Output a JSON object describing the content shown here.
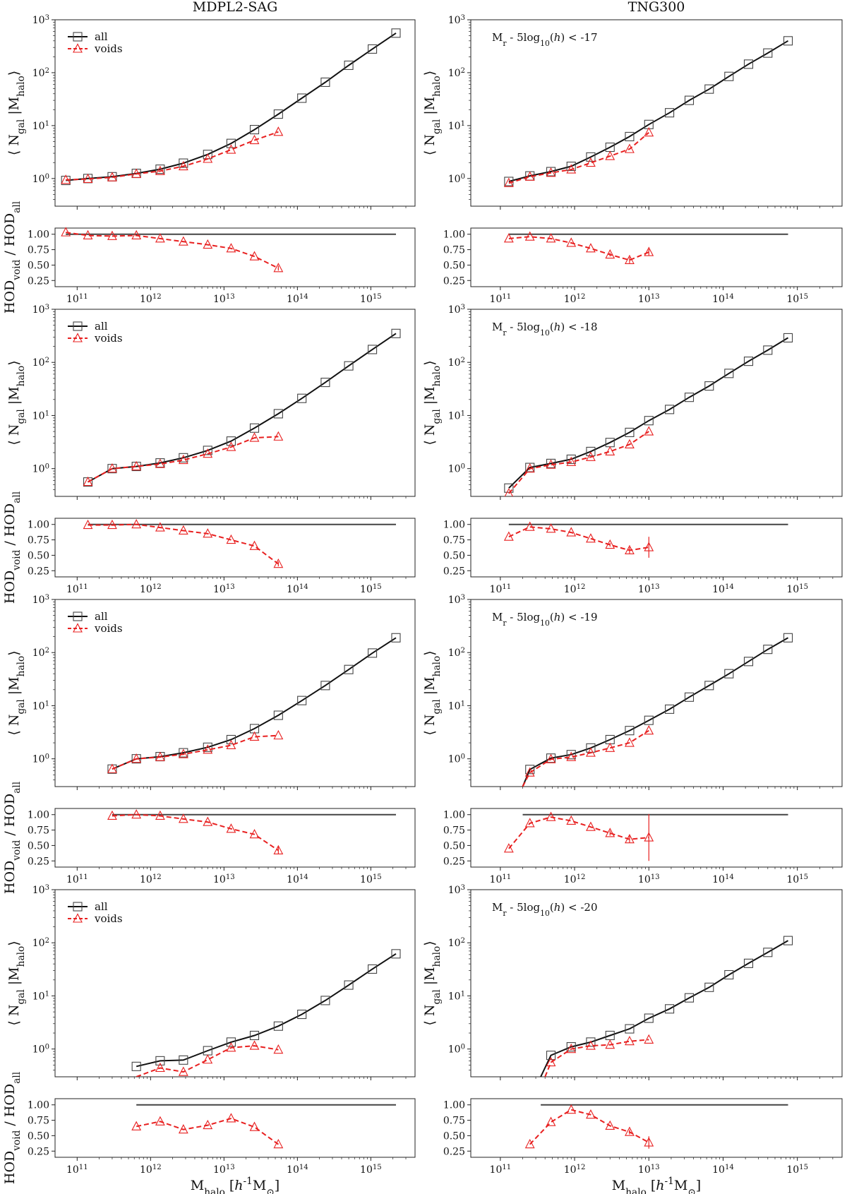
{
  "columns": [
    "MDPL2-SAG",
    "TNG300"
  ],
  "axis": {
    "xlabel": "M<sub>halo</sub> [<i>h</i><sup>-1</sup>M<sub>⊙</sub>]",
    "ylabel_top": "⟨ N<sub>gal</sub> |M<sub>halo</sub>⟩",
    "ylabel_ratio": "HOD<sub>void</sub> / HOD<sub>all</sub>",
    "x_ticks": [
      {
        "exp": 11,
        "label": "10<sup>11</sup>"
      },
      {
        "exp": 12,
        "label": "10<sup>12</sup>"
      },
      {
        "exp": 13,
        "label": "10<sup>13</sup>"
      },
      {
        "exp": 14,
        "label": "10<sup>14</sup>"
      },
      {
        "exp": 15,
        "label": "10<sup>15</sup>"
      }
    ],
    "y_ticks": [
      {
        "exp": 0,
        "label": "10<sup>0</sup>"
      },
      {
        "exp": 1,
        "label": "10<sup>1</sup>"
      },
      {
        "exp": 2,
        "label": "10<sup>2</sup>"
      },
      {
        "exp": 3,
        "label": "10<sup>3</sup>"
      }
    ],
    "ratio_ticks": [
      "1.00",
      "0.75",
      "0.50",
      "0.25"
    ]
  },
  "legend": {
    "all": "all",
    "voids": "voids"
  },
  "colors": {
    "all": "#111111",
    "voids": "#e82020"
  },
  "chart_data": [
    {
      "type": "line",
      "column": "MDPL2-SAG",
      "row": 1,
      "annotation": "",
      "xscale": "log",
      "yscale": "log",
      "xlim": [
        50000000000.0,
        4000000000000000.0
      ],
      "ylim": [
        0.3,
        1000
      ],
      "ratio_ylim": [
        0.15,
        1.1
      ],
      "series": [
        {
          "name": "all",
          "x": [
            70000000000.0,
            140000000000.0,
            300000000000.0,
            640000000000.0,
            1350000000000.0,
            2800000000000.0,
            6000000000000.0,
            12500000000000.0,
            26000000000000.0,
            55000000000000.0,
            115000000000000.0,
            240000000000000.0,
            500000000000000.0,
            1050000000000000.0,
            2200000000000000.0
          ],
          "y": [
            0.92,
            1.0,
            1.08,
            1.25,
            1.5,
            1.95,
            2.85,
            4.6,
            8.4,
            16.5,
            33,
            66,
            138,
            280,
            560
          ]
        },
        {
          "name": "voids",
          "x": [
            70000000000.0,
            140000000000.0,
            300000000000.0,
            640000000000.0,
            1350000000000.0,
            2800000000000.0,
            6000000000000.0,
            12500000000000.0,
            26000000000000.0,
            55000000000000.0
          ],
          "y": [
            0.94,
            0.98,
            1.05,
            1.22,
            1.38,
            1.7,
            2.35,
            3.5,
            5.3,
            7.6
          ]
        }
      ],
      "ratio": {
        "x": [
          70000000000.0,
          140000000000.0,
          300000000000.0,
          640000000000.0,
          1350000000000.0,
          2800000000000.0,
          6000000000000.0,
          12500000000000.0,
          26000000000000.0,
          55000000000000.0
        ],
        "y": [
          1.03,
          0.98,
          0.97,
          0.98,
          0.93,
          0.88,
          0.83,
          0.77,
          0.64,
          0.45
        ],
        "err": [
          0,
          0,
          0,
          0,
          0,
          0,
          0,
          0,
          0,
          0.04
        ]
      }
    },
    {
      "type": "line",
      "column": "TNG300",
      "row": 1,
      "annotation": "M<sub>r</sub> - 5log<sub>10</sub>(<i>h</i>) &lt; -17",
      "xscale": "log",
      "yscale": "log",
      "xlim": [
        40000000000.0,
        4000000000000000.0
      ],
      "ylim": [
        0.3,
        1000
      ],
      "ratio_ylim": [
        0.15,
        1.1
      ],
      "series": [
        {
          "name": "all",
          "x": [
            130000000000.0,
            250000000000.0,
            480000000000.0,
            900000000000.0,
            1650000000000.0,
            3000000000000.0,
            5500000000000.0,
            10000000000000.0,
            19000000000000.0,
            35000000000000.0,
            65000000000000.0,
            120000000000000.0,
            220000000000000.0,
            400000000000000.0,
            750000000000000.0
          ],
          "y": [
            0.88,
            1.12,
            1.35,
            1.7,
            2.55,
            3.9,
            6.2,
            10.5,
            17.5,
            30,
            49,
            85,
            145,
            235,
            400
          ]
        },
        {
          "name": "voids",
          "x": [
            130000000000.0,
            250000000000.0,
            480000000000.0,
            900000000000.0,
            1650000000000.0,
            3000000000000.0,
            5500000000000.0,
            10000000000000.0
          ],
          "y": [
            0.82,
            1.08,
            1.28,
            1.48,
            1.98,
            2.65,
            3.6,
            7.4
          ]
        }
      ],
      "ratio": {
        "x": [
          130000000000.0,
          250000000000.0,
          480000000000.0,
          900000000000.0,
          1650000000000.0,
          3000000000000.0,
          5500000000000.0,
          10000000000000.0
        ],
        "y": [
          0.93,
          0.96,
          0.93,
          0.86,
          0.77,
          0.67,
          0.58,
          0.71
        ],
        "err": [
          0,
          0,
          0,
          0,
          0,
          0.03,
          0.05,
          0.05
        ]
      }
    },
    {
      "type": "line",
      "column": "MDPL2-SAG",
      "row": 2,
      "annotation": "",
      "xscale": "log",
      "yscale": "log",
      "xlim": [
        50000000000.0,
        4000000000000000.0
      ],
      "ylim": [
        0.3,
        1000
      ],
      "ratio_ylim": [
        0.15,
        1.1
      ],
      "series": [
        {
          "name": "all",
          "x": [
            140000000000.0,
            300000000000.0,
            640000000000.0,
            1350000000000.0,
            2800000000000.0,
            6000000000000.0,
            12500000000000.0,
            26000000000000.0,
            55000000000000.0,
            115000000000000.0,
            240000000000000.0,
            500000000000000.0,
            1050000000000000.0,
            2200000000000000.0
          ],
          "y": [
            0.56,
            1.0,
            1.1,
            1.28,
            1.6,
            2.2,
            3.3,
            5.8,
            10.8,
            21,
            42,
            86,
            175,
            350
          ]
        },
        {
          "name": "voids",
          "x": [
            140000000000.0,
            300000000000.0,
            640000000000.0,
            1350000000000.0,
            2800000000000.0,
            6000000000000.0,
            12500000000000.0,
            26000000000000.0,
            55000000000000.0
          ],
          "y": [
            0.56,
            1.0,
            1.1,
            1.22,
            1.45,
            1.9,
            2.55,
            3.8,
            4.0
          ]
        }
      ],
      "ratio": {
        "x": [
          140000000000.0,
          300000000000.0,
          640000000000.0,
          1350000000000.0,
          2800000000000.0,
          6000000000000.0,
          12500000000000.0,
          26000000000000.0,
          55000000000000.0
        ],
        "y": [
          0.99,
          0.99,
          1.0,
          0.95,
          0.9,
          0.85,
          0.75,
          0.65,
          0.36
        ],
        "err": [
          0,
          0,
          0,
          0,
          0,
          0,
          0,
          0,
          0.04
        ]
      }
    },
    {
      "type": "line",
      "column": "TNG300",
      "row": 2,
      "annotation": "M<sub>r</sub> - 5log<sub>10</sub>(<i>h</i>) &lt; -18",
      "xscale": "log",
      "yscale": "log",
      "xlim": [
        40000000000.0,
        4000000000000000.0
      ],
      "ylim": [
        0.3,
        1000
      ],
      "ratio_ylim": [
        0.15,
        1.1
      ],
      "series": [
        {
          "name": "all",
          "x": [
            130000000000.0,
            250000000000.0,
            480000000000.0,
            900000000000.0,
            1650000000000.0,
            3000000000000.0,
            5500000000000.0,
            10000000000000.0,
            19000000000000.0,
            35000000000000.0,
            65000000000000.0,
            120000000000000.0,
            220000000000000.0,
            400000000000000.0,
            750000000000000.0
          ],
          "y": [
            0.43,
            1.05,
            1.25,
            1.5,
            2.1,
            3.1,
            4.8,
            8.0,
            13,
            22,
            36,
            62,
            105,
            170,
            290
          ]
        },
        {
          "name": "voids",
          "x": [
            130000000000.0,
            250000000000.0,
            480000000000.0,
            900000000000.0,
            1650000000000.0,
            3000000000000.0,
            5500000000000.0,
            10000000000000.0
          ],
          "y": [
            0.34,
            1.0,
            1.18,
            1.33,
            1.65,
            2.1,
            2.85,
            5.0
          ]
        }
      ],
      "ratio": {
        "x": [
          130000000000.0,
          250000000000.0,
          480000000000.0,
          900000000000.0,
          1650000000000.0,
          3000000000000.0,
          5500000000000.0,
          10000000000000.0
        ],
        "y": [
          0.8,
          0.96,
          0.93,
          0.87,
          0.77,
          0.67,
          0.58,
          0.63
        ],
        "err": [
          0,
          0,
          0,
          0,
          0,
          0.03,
          0.05,
          0.17
        ]
      }
    },
    {
      "type": "line",
      "column": "MDPL2-SAG",
      "row": 3,
      "annotation": "",
      "xscale": "log",
      "yscale": "log",
      "xlim": [
        50000000000.0,
        4000000000000000.0
      ],
      "ylim": [
        0.3,
        1000
      ],
      "ratio_ylim": [
        0.15,
        1.1
      ],
      "series": [
        {
          "name": "all",
          "x": [
            300000000000.0,
            640000000000.0,
            1350000000000.0,
            2800000000000.0,
            6000000000000.0,
            12500000000000.0,
            26000000000000.0,
            55000000000000.0,
            115000000000000.0,
            240000000000000.0,
            500000000000000.0,
            1050000000000000.0,
            2200000000000000.0
          ],
          "y": [
            0.64,
            1.0,
            1.1,
            1.3,
            1.65,
            2.3,
            3.7,
            6.6,
            12.5,
            24,
            48,
            98,
            190
          ]
        },
        {
          "name": "voids",
          "x": [
            300000000000.0,
            640000000000.0,
            1350000000000.0,
            2800000000000.0,
            6000000000000.0,
            12500000000000.0,
            26000000000000.0,
            55000000000000.0
          ],
          "y": [
            0.64,
            1.0,
            1.08,
            1.22,
            1.48,
            1.8,
            2.6,
            2.75
          ]
        }
      ],
      "ratio": {
        "x": [
          300000000000.0,
          640000000000.0,
          1350000000000.0,
          2800000000000.0,
          6000000000000.0,
          12500000000000.0,
          26000000000000.0,
          55000000000000.0
        ],
        "y": [
          0.98,
          1.0,
          0.98,
          0.93,
          0.88,
          0.77,
          0.68,
          0.42
        ],
        "err": [
          0,
          0,
          0,
          0,
          0,
          0,
          0,
          0.06
        ]
      }
    },
    {
      "type": "line",
      "column": "TNG300",
      "row": 3,
      "annotation": "M<sub>r</sub> - 5log<sub>10</sub>(<i>h</i>) &lt; -19",
      "xscale": "log",
      "yscale": "log",
      "xlim": [
        40000000000.0,
        4000000000000000.0
      ],
      "ylim": [
        0.3,
        1000
      ],
      "ratio_ylim": [
        0.15,
        1.1
      ],
      "series": [
        {
          "name": "all",
          "x": [
            200000000000.0,
            250000000000.0,
            480000000000.0,
            900000000000.0,
            1650000000000.0,
            3000000000000.0,
            5500000000000.0,
            10000000000000.0,
            19000000000000.0,
            35000000000000.0,
            65000000000000.0,
            120000000000000.0,
            220000000000000.0,
            400000000000000.0,
            750000000000000.0
          ],
          "y": [
            0.3,
            0.63,
            1.03,
            1.2,
            1.6,
            2.3,
            3.4,
            5.3,
            8.6,
            14.5,
            24,
            40,
            68,
            115,
            190
          ]
        },
        {
          "name": "voids",
          "x": [
            200000000000.0,
            250000000000.0,
            480000000000.0,
            900000000000.0,
            1650000000000.0,
            3000000000000.0,
            5500000000000.0,
            10000000000000.0
          ],
          "y": [
            0.3,
            0.55,
            0.98,
            1.08,
            1.3,
            1.6,
            2.0,
            3.4
          ]
        }
      ],
      "ratio": {
        "x": [
          130000000000.0,
          250000000000.0,
          480000000000.0,
          900000000000.0,
          1650000000000.0,
          3000000000000.0,
          5500000000000.0,
          10000000000000.0
        ],
        "y": [
          0.45,
          0.86,
          0.96,
          0.9,
          0.8,
          0.7,
          0.6,
          0.63
        ],
        "err": [
          0,
          0,
          0,
          0,
          0,
          0.04,
          0.06,
          0.38
        ]
      }
    },
    {
      "type": "line",
      "column": "MDPL2-SAG",
      "row": 4,
      "annotation": "",
      "xscale": "log",
      "yscale": "log",
      "xlim": [
        50000000000.0,
        4000000000000000.0
      ],
      "ylim": [
        0.3,
        1000
      ],
      "ratio_ylim": [
        0.15,
        1.1
      ],
      "series": [
        {
          "name": "all",
          "x": [
            640000000000.0,
            1350000000000.0,
            2800000000000.0,
            6000000000000.0,
            12500000000000.0,
            26000000000000.0,
            55000000000000.0,
            115000000000000.0,
            240000000000000.0,
            500000000000000.0,
            1050000000000000.0,
            2200000000000000.0
          ],
          "y": [
            0.47,
            0.6,
            0.62,
            0.93,
            1.35,
            1.8,
            2.7,
            4.5,
            8.2,
            16,
            32,
            62
          ]
        },
        {
          "name": "voids",
          "x": [
            640000000000.0,
            1350000000000.0,
            2800000000000.0,
            6000000000000.0,
            12500000000000.0,
            26000000000000.0,
            55000000000000.0
          ],
          "y": [
            0.3,
            0.44,
            0.37,
            0.63,
            1.06,
            1.15,
            0.97
          ]
        }
      ],
      "ratio": {
        "x": [
          640000000000.0,
          1350000000000.0,
          2800000000000.0,
          6000000000000.0,
          12500000000000.0,
          26000000000000.0,
          55000000000000.0
        ],
        "y": [
          0.65,
          0.73,
          0.6,
          0.67,
          0.78,
          0.64,
          0.36
        ],
        "err": [
          0,
          0,
          0,
          0,
          0,
          0,
          0
        ]
      }
    },
    {
      "type": "line",
      "column": "TNG300",
      "row": 4,
      "annotation": "M<sub>r</sub> - 5log<sub>10</sub>(<i>h</i>) &lt; -20",
      "xscale": "log",
      "yscale": "log",
      "xlim": [
        40000000000.0,
        4000000000000000.0
      ],
      "ylim": [
        0.3,
        1000
      ],
      "ratio_ylim": [
        0.15,
        1.1
      ],
      "series": [
        {
          "name": "all",
          "x": [
            350000000000.0,
            480000000000.0,
            900000000000.0,
            1650000000000.0,
            3000000000000.0,
            5500000000000.0,
            10000000000000.0,
            19000000000000.0,
            35000000000000.0,
            65000000000000.0,
            120000000000000.0,
            220000000000000.0,
            400000000000000.0,
            750000000000000.0
          ],
          "y": [
            0.3,
            0.76,
            1.1,
            1.35,
            1.8,
            2.4,
            3.8,
            5.7,
            9.2,
            14.5,
            25,
            41,
            66,
            110
          ]
        },
        {
          "name": "voids",
          "x": [
            400000000000.0,
            480000000000.0,
            900000000000.0,
            1650000000000.0,
            3000000000000.0,
            5500000000000.0,
            10000000000000.0
          ],
          "y": [
            0.3,
            0.56,
            1.0,
            1.15,
            1.2,
            1.4,
            1.5
          ]
        }
      ],
      "ratio": {
        "x": [
          250000000000.0,
          480000000000.0,
          900000000000.0,
          1650000000000.0,
          3000000000000.0,
          5500000000000.0,
          10000000000000.0
        ],
        "y": [
          0.36,
          0.72,
          0.92,
          0.84,
          0.66,
          0.56,
          0.39
        ],
        "err": [
          0,
          0,
          0,
          0,
          0,
          0.04,
          0.1
        ]
      }
    }
  ]
}
